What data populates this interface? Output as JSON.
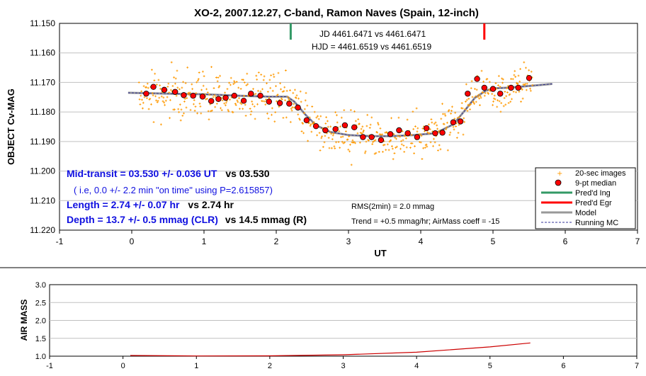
{
  "chart_data": [
    {
      "type": "scatter",
      "title": "XO-2, 2007.12.27, C-band, Ramon Naves (Spain, 12-inch)",
      "xlabel": "UT",
      "ylabel": "OBJECT Cv-MAG",
      "xlim": [
        -1,
        7
      ],
      "ylim": [
        11.22,
        11.15
      ],
      "x_ticks": [
        "-1",
        "0",
        "1",
        "2",
        "3",
        "4",
        "5",
        "6",
        "7"
      ],
      "y_ticks": [
        "11.150",
        "11.160",
        "11.170",
        "11.180",
        "11.190",
        "11.200",
        "11.210",
        "11.220"
      ],
      "legend_position": "bottom-right",
      "legend": [
        "20-sec images",
        "9-pt median",
        "Pred'd Ing",
        "Pred'd Egr",
        "Model",
        "Running MC"
      ],
      "ingress_x": 2.2,
      "egress_x": 4.88,
      "colors": {
        "images": "#ff9900",
        "median": "#ff0000",
        "ingress": "#339966",
        "egress": "#ff0000",
        "model": "#999999",
        "running": "#333399"
      },
      "median_points": {
        "x": [
          0.2,
          0.3,
          0.45,
          0.6,
          0.72,
          0.85,
          0.98,
          1.1,
          1.2,
          1.3,
          1.42,
          1.55,
          1.65,
          1.78,
          1.9,
          2.05,
          2.18,
          2.3,
          2.42,
          2.55,
          2.68,
          2.82,
          2.95,
          3.08,
          3.2,
          3.32,
          3.45,
          3.58,
          3.7,
          3.82,
          3.95,
          4.08,
          4.2,
          4.3,
          4.45,
          4.55,
          4.65,
          4.78,
          4.88,
          5.0,
          5.1,
          5.25,
          5.35,
          5.5
        ],
        "y": [
          11.1738,
          11.1715,
          11.1725,
          11.1732,
          11.1743,
          11.1745,
          11.1748,
          11.1763,
          11.1756,
          11.1752,
          11.1745,
          11.1762,
          11.1738,
          11.1745,
          11.1765,
          11.177,
          11.1772,
          11.1785,
          11.1828,
          11.1848,
          11.1862,
          11.1858,
          11.1845,
          11.1852,
          11.1885,
          11.1885,
          11.1895,
          11.1875,
          11.1862,
          11.1872,
          11.1885,
          11.1855,
          11.1872,
          11.187,
          11.1835,
          11.1832,
          11.1738,
          11.1688,
          11.1718,
          11.1722,
          11.1738,
          11.1718,
          11.1718,
          11.1685
        ]
      },
      "model_line": {
        "x": [
          -0.05,
          0.5,
          1.0,
          1.5,
          1.9,
          2.15,
          2.25,
          2.4,
          2.55,
          2.75,
          3.0,
          3.3,
          3.6,
          3.9,
          4.2,
          4.45,
          4.6,
          4.75,
          4.9,
          5.0,
          5.2,
          5.5,
          5.82
        ],
        "y": [
          11.1735,
          11.1738,
          11.174,
          11.1745,
          11.1748,
          11.1748,
          11.1765,
          11.1808,
          11.1845,
          11.1868,
          11.1878,
          11.1882,
          11.1882,
          11.1878,
          11.1872,
          11.1842,
          11.1798,
          11.1752,
          11.1728,
          11.172,
          11.1718,
          11.1712,
          11.1705
        ]
      },
      "annotations": {
        "jd": "JD 4461.6471 vs 4461.6471",
        "hjd": "HJD = 4461.6519 vs 4461.6519",
        "mid_transit": "Mid-transit = 03.530 +/- 0.036 UT",
        "mid_transit_vs": "vs 03.530",
        "on_time": "( i.e, 0.0 +/- 2.2 min \"on time\" using P=2.615857)",
        "length": "Length = 2.74 +/- 0.07 hr",
        "length_vs": "vs 2.74 hr",
        "depth": "Depth = 13.7 +/- 0.5 mmag (CLR)",
        "depth_vs": "vs 14.5  mmag (R)",
        "rms": "RMS(2min) = 2.0 mmag",
        "trend": "Trend = +0.5 mmag/hr; AirMass coeff = -15"
      }
    },
    {
      "type": "line",
      "title": "",
      "xlabel": "",
      "ylabel": "AIR MASS",
      "xlim": [
        -1,
        7
      ],
      "ylim": [
        1.0,
        3.0
      ],
      "x_ticks": [
        "-1",
        "0",
        "1",
        "2",
        "3",
        "4",
        "5",
        "6",
        "7"
      ],
      "y_ticks": [
        "1.0",
        "1.5",
        "2.0",
        "2.5",
        "3.0"
      ],
      "colors": {
        "line": "#cc0000"
      },
      "series": [
        {
          "x": [
            0.1,
            1.0,
            2.0,
            3.0,
            4.0,
            5.0,
            5.55
          ],
          "y": [
            1.02,
            1.005,
            1.01,
            1.04,
            1.11,
            1.26,
            1.37
          ]
        }
      ]
    }
  ]
}
